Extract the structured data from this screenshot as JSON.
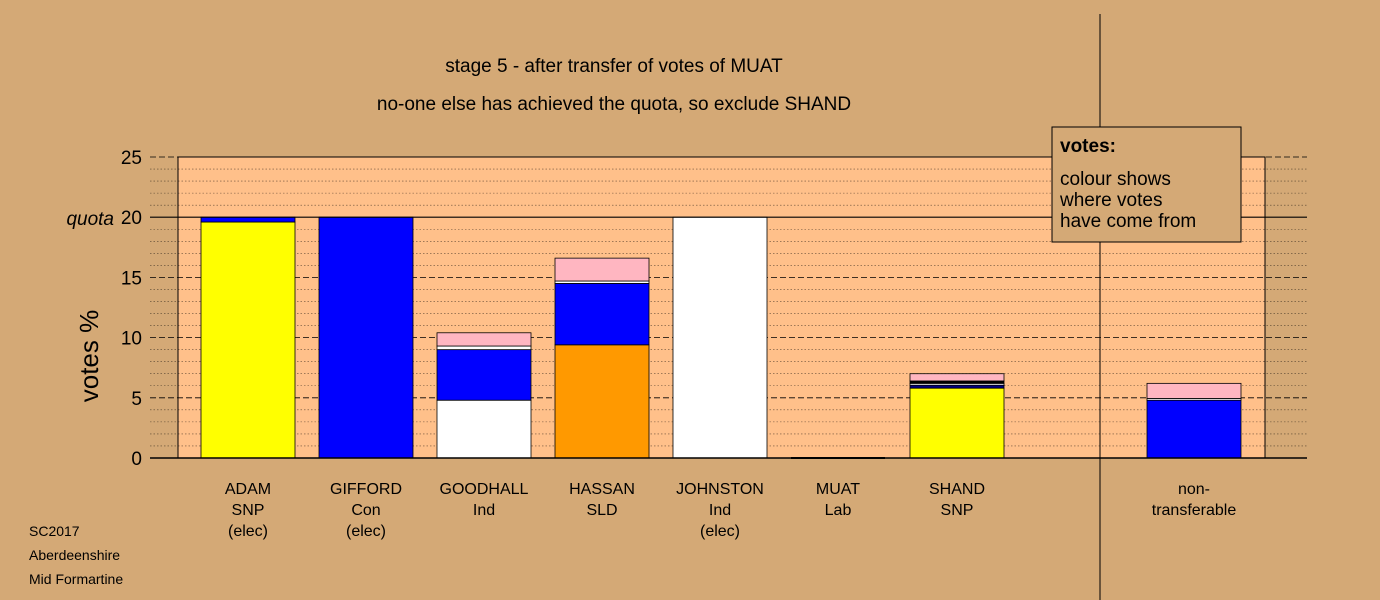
{
  "chart_data": {
    "type": "bar",
    "stacked": true,
    "title": "stage 5 - after transfer of votes of MUAT",
    "subtitle": "no-one else has achieved the quota, so exclude SHAND",
    "ylabel": "votes %",
    "ylim": [
      0,
      25
    ],
    "yticks": [
      0,
      5,
      10,
      15,
      20,
      25
    ],
    "quota": 20,
    "quota_label": "quota",
    "grid": true,
    "legend": {
      "title": "votes:",
      "lines": [
        "colour shows",
        "where votes",
        "have come from"
      ],
      "placement": "top-right"
    },
    "colors": {
      "background": "#D4A976",
      "plot": "#FFC08A",
      "snp": "#FFFF00",
      "con": "#0000FF",
      "ind": "#FFFFFF",
      "sld": "#FF9900",
      "lab": "#FFB6C1",
      "dark": "#000080"
    },
    "categories": [
      {
        "lines": [
          "ADAM",
          "SNP",
          "(elec)"
        ]
      },
      {
        "lines": [
          "GIFFORD",
          "Con",
          "(elec)"
        ]
      },
      {
        "lines": [
          "GOODHALL",
          "Ind"
        ]
      },
      {
        "lines": [
          "HASSAN",
          "SLD"
        ]
      },
      {
        "lines": [
          "JOHNSTON",
          "Ind",
          "(elec)"
        ]
      },
      {
        "lines": [
          "MUAT",
          "Lab"
        ]
      },
      {
        "lines": [
          "SHAND",
          "SNP"
        ]
      },
      {
        "lines": [
          "non-",
          "transferable"
        ]
      }
    ],
    "bars": [
      {
        "category": "ADAM",
        "segments": [
          {
            "from": "SNP",
            "color": "#FFFF00",
            "value": 19.6
          },
          {
            "from": "Con",
            "color": "#0000FF",
            "value": 0.4
          }
        ]
      },
      {
        "category": "GIFFORD",
        "segments": [
          {
            "from": "Con",
            "color": "#0000FF",
            "value": 20.0
          }
        ]
      },
      {
        "category": "GOODHALL",
        "segments": [
          {
            "from": "Ind",
            "color": "#FFFFFF",
            "value": 4.8
          },
          {
            "from": "Con",
            "color": "#0000FF",
            "value": 4.2
          },
          {
            "from": "other",
            "color": "#FFFFFF",
            "value": 0.3
          },
          {
            "from": "Lab",
            "color": "#FFB6C1",
            "value": 1.1
          }
        ]
      },
      {
        "category": "HASSAN",
        "segments": [
          {
            "from": "SLD",
            "color": "#FF9900",
            "value": 9.4
          },
          {
            "from": "Con",
            "color": "#0000FF",
            "value": 5.1
          },
          {
            "from": "other",
            "color": "#FFFFFF",
            "value": 0.2
          },
          {
            "from": "Lab",
            "color": "#FFB6C1",
            "value": 1.9
          }
        ]
      },
      {
        "category": "JOHNSTON",
        "segments": [
          {
            "from": "Ind",
            "color": "#FFFFFF",
            "value": 20.0
          }
        ]
      },
      {
        "category": "MUAT",
        "segments": []
      },
      {
        "category": "SHAND",
        "segments": [
          {
            "from": "SNP",
            "color": "#FFFF00",
            "value": 5.8
          },
          {
            "from": "other",
            "color": "#000080",
            "value": 0.25
          },
          {
            "from": "Ind",
            "color": "#FFFFFF",
            "value": 0.15
          },
          {
            "from": "other",
            "color": "#000000",
            "value": 0.2
          },
          {
            "from": "Lab",
            "color": "#FFB6C1",
            "value": 0.6
          }
        ]
      },
      {
        "category": "non-transferable",
        "segments": [
          {
            "from": "Con",
            "color": "#0000FF",
            "value": 4.8
          },
          {
            "from": "other",
            "color": "#FFFFFF",
            "value": 0.15
          },
          {
            "from": "Lab",
            "color": "#FFB6C1",
            "value": 1.25
          }
        ]
      }
    ]
  },
  "footer": {
    "election": "SC2017",
    "council": "Aberdeenshire",
    "ward": "Mid Formartine"
  }
}
